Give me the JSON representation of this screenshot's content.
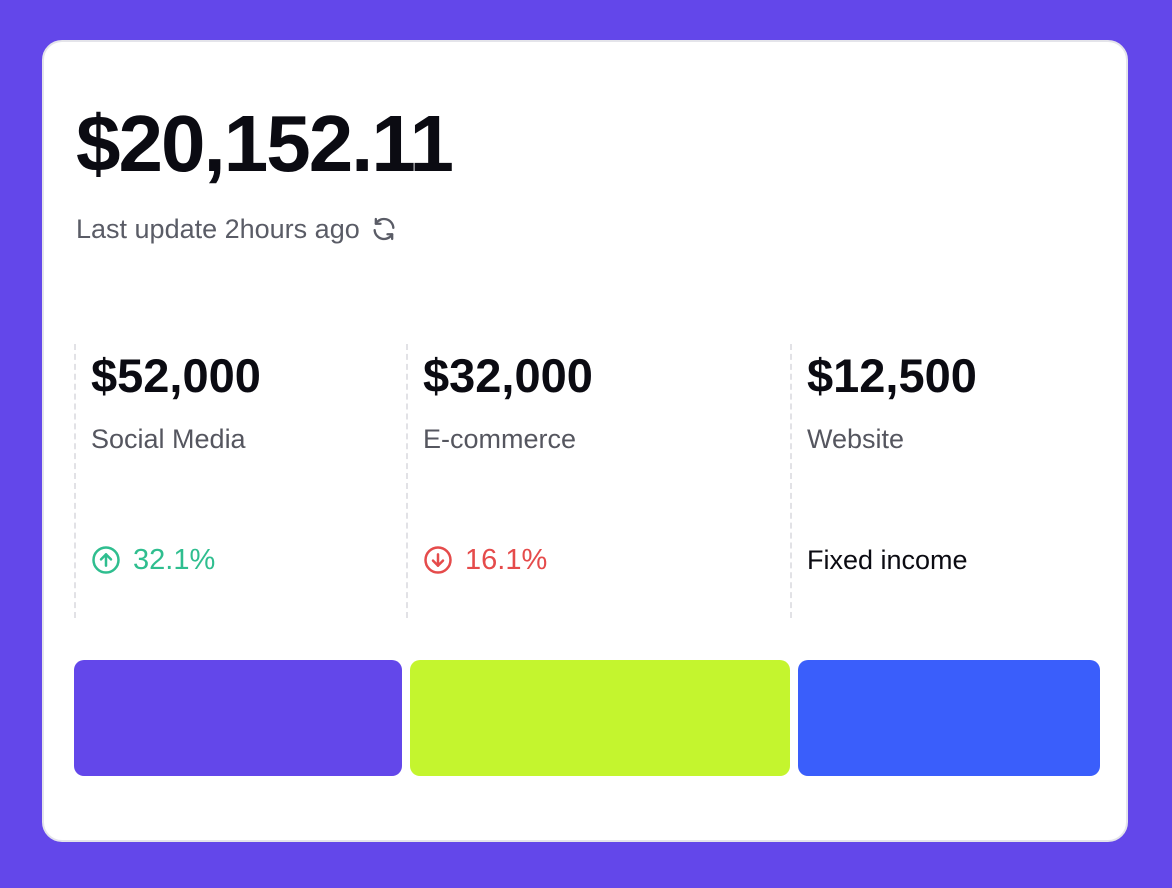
{
  "summary": {
    "total": "$20,152.11",
    "last_update": "Last update 2hours ago",
    "refresh_icon": "refresh-icon"
  },
  "sources": [
    {
      "amount": "$52,000",
      "label": "Social Media",
      "change": "32.1%",
      "trend": "up",
      "trend_icon": "arrow-up-circle-icon",
      "color": "#2FBE8F",
      "bar_color": "#6347EA"
    },
    {
      "amount": "$32,000",
      "label": "E-commerce",
      "change": "16.1%",
      "trend": "down",
      "trend_icon": "arrow-down-circle-icon",
      "color": "#E54B4B",
      "bar_color": "#C4F52E"
    },
    {
      "amount": "$12,500",
      "label": "Website",
      "change": "Fixed income",
      "trend": "flat",
      "color": "#0B0B12",
      "bar_color": "#3A5EFB"
    }
  ],
  "theme": {
    "background": "#6347EA",
    "card": "#FFFFFF"
  }
}
